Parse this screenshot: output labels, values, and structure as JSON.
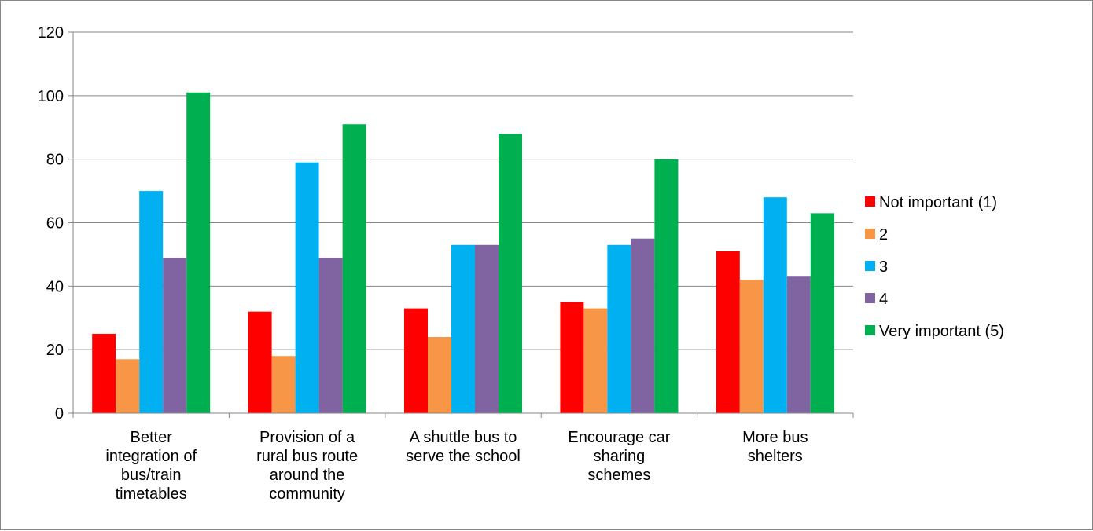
{
  "chart_data": {
    "type": "bar",
    "categories": [
      [
        "Better",
        "integration of",
        "bus/train",
        "timetables"
      ],
      [
        "Provision of a",
        "rural bus route",
        "around the",
        "community"
      ],
      [
        "A shuttle bus to",
        "serve the school"
      ],
      [
        "Encourage car",
        "sharing",
        "schemes"
      ],
      [
        "More bus",
        "shelters"
      ]
    ],
    "series": [
      {
        "name": "Not important (1)",
        "color": "#ff0000",
        "values": [
          25,
          32,
          33,
          35,
          51
        ]
      },
      {
        "name": "2",
        "color": "#f79646",
        "values": [
          17,
          18,
          24,
          33,
          42
        ]
      },
      {
        "name": "3",
        "color": "#00b0f0",
        "values": [
          70,
          79,
          53,
          53,
          68
        ]
      },
      {
        "name": "4",
        "color": "#8064a2",
        "values": [
          49,
          49,
          53,
          55,
          43
        ]
      },
      {
        "name": "Very important (5)",
        "color": "#00b050",
        "values": [
          101,
          91,
          88,
          80,
          63
        ]
      }
    ],
    "ylim": [
      0,
      120
    ],
    "yticks": [
      0,
      20,
      40,
      60,
      80,
      100,
      120
    ],
    "grid": true,
    "legend": "right"
  }
}
